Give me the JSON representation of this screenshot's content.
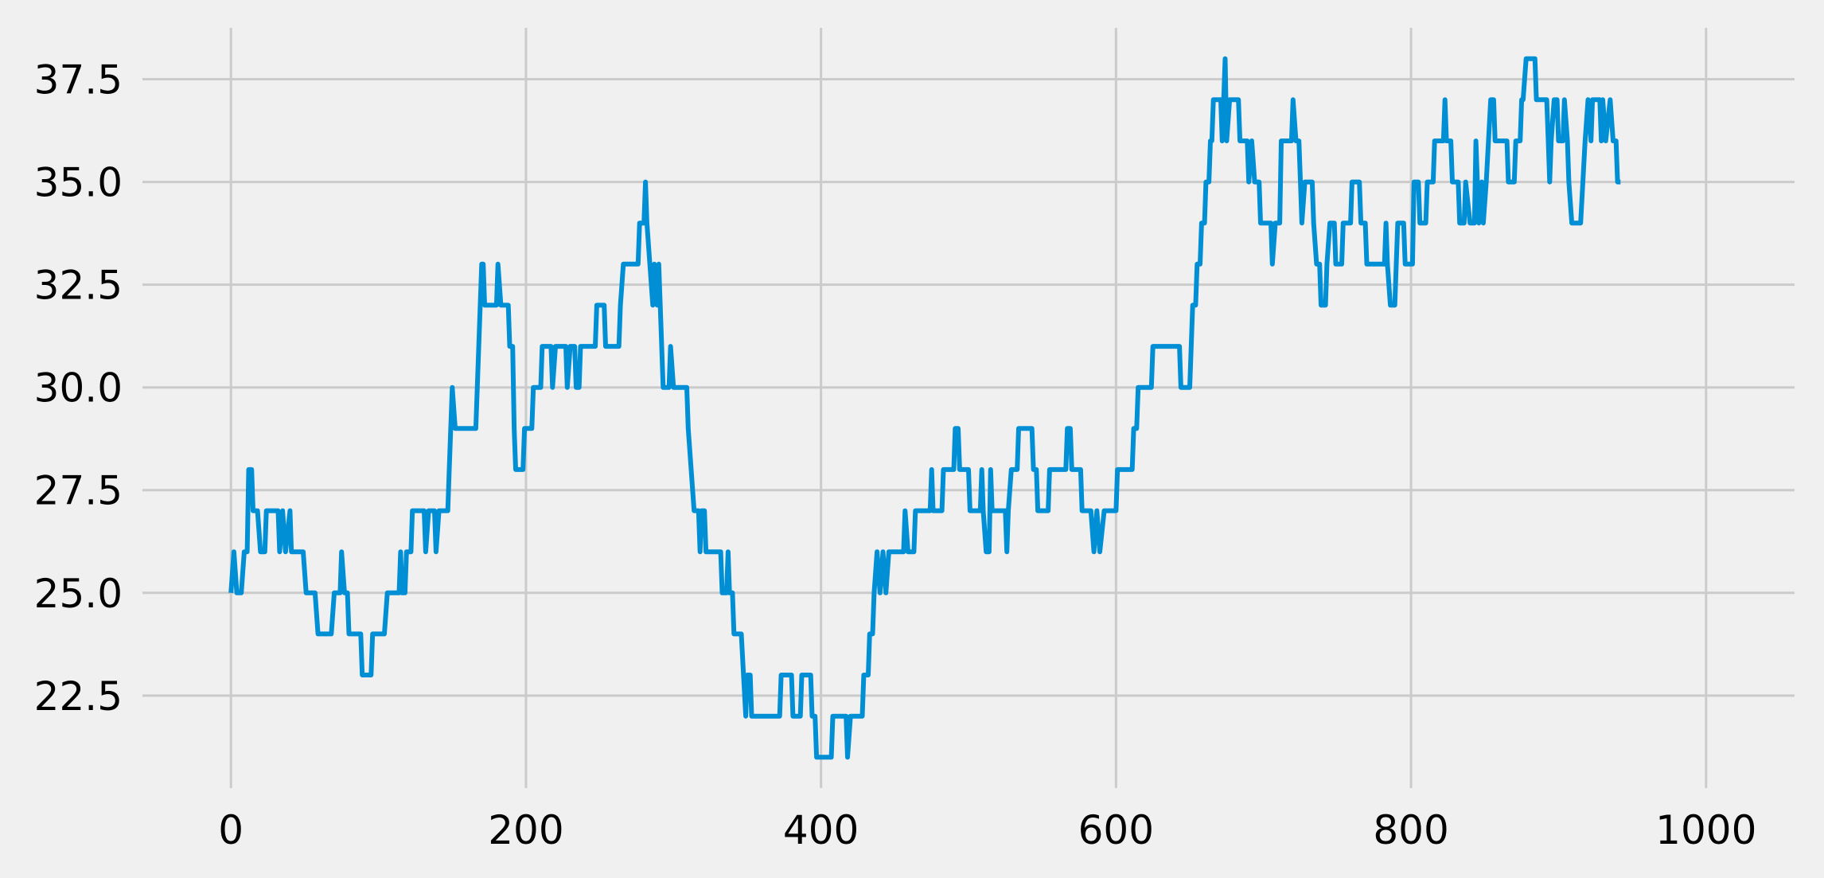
{
  "chart_data": {
    "type": "line",
    "title": "",
    "xlabel": "",
    "ylabel": "",
    "grid": true,
    "xlim": [
      -60,
      1060
    ],
    "ylim": [
      20.25,
      38.75
    ],
    "x_ticks": [
      0,
      200,
      400,
      600,
      800,
      1000
    ],
    "x_tick_labels": [
      "0",
      "200",
      "400",
      "600",
      "800",
      "1000"
    ],
    "y_ticks": [
      22.5,
      25.0,
      27.5,
      30.0,
      32.5,
      35.0,
      37.5
    ],
    "y_tick_labels": [
      "22.5",
      "25.0",
      "27.5",
      "30.0",
      "32.5",
      "35.0",
      "37.5"
    ],
    "colors": {
      "background": "#f0f0f0",
      "grid": "#cbcbcb",
      "line": "#008fd5"
    },
    "series": [
      {
        "color": "#008fd5",
        "steps": [
          [
            0,
            25
          ],
          [
            2,
            26
          ],
          [
            4,
            25
          ],
          [
            7,
            25
          ],
          [
            9,
            26
          ],
          [
            11,
            26
          ],
          [
            12,
            28
          ],
          [
            14,
            28
          ],
          [
            15,
            27
          ],
          [
            18,
            27
          ],
          [
            20,
            26
          ],
          [
            23,
            26
          ],
          [
            24,
            27
          ],
          [
            32,
            27
          ],
          [
            33,
            26
          ],
          [
            35,
            27
          ],
          [
            37,
            26
          ],
          [
            40,
            27
          ],
          [
            41,
            26
          ],
          [
            49,
            26
          ],
          [
            51,
            25
          ],
          [
            57,
            25
          ],
          [
            59,
            24
          ],
          [
            68,
            24
          ],
          [
            70,
            25
          ],
          [
            74,
            25
          ],
          [
            75,
            26
          ],
          [
            77,
            25
          ],
          [
            79,
            25
          ],
          [
            80,
            24
          ],
          [
            88,
            24
          ],
          [
            89,
            23
          ],
          [
            95,
            23
          ],
          [
            96,
            24
          ],
          [
            104,
            24
          ],
          [
            106,
            25
          ],
          [
            114,
            25
          ],
          [
            115,
            26
          ],
          [
            116,
            25
          ],
          [
            118,
            25
          ],
          [
            119,
            26
          ],
          [
            122,
            26
          ],
          [
            123,
            27
          ],
          [
            131,
            27
          ],
          [
            132,
            26
          ],
          [
            134,
            27
          ],
          [
            138,
            27
          ],
          [
            139,
            26
          ],
          [
            141,
            27
          ],
          [
            147,
            27
          ],
          [
            148,
            28
          ],
          [
            150,
            30
          ],
          [
            152,
            29
          ],
          [
            166,
            29
          ],
          [
            170,
            33
          ],
          [
            171,
            33
          ],
          [
            172,
            32
          ],
          [
            180,
            32
          ],
          [
            181,
            33
          ],
          [
            183,
            32
          ],
          [
            188,
            32
          ],
          [
            189,
            31
          ],
          [
            191,
            31
          ],
          [
            192,
            29
          ],
          [
            193,
            28
          ],
          [
            198,
            28
          ],
          [
            199,
            29
          ],
          [
            204,
            29
          ],
          [
            205,
            30
          ],
          [
            210,
            30
          ],
          [
            211,
            31
          ],
          [
            217,
            31
          ],
          [
            218,
            30
          ],
          [
            220,
            31
          ],
          [
            227,
            31
          ],
          [
            228,
            30
          ],
          [
            230,
            31
          ],
          [
            233,
            31
          ],
          [
            234,
            30
          ],
          [
            236,
            30
          ],
          [
            237,
            31
          ],
          [
            247,
            31
          ],
          [
            248,
            32
          ],
          [
            253,
            32
          ],
          [
            254,
            31
          ],
          [
            263,
            31
          ],
          [
            264,
            32
          ],
          [
            266,
            33
          ],
          [
            276,
            33
          ],
          [
            277,
            34
          ],
          [
            280,
            34
          ],
          [
            281,
            35
          ],
          [
            282,
            34
          ],
          [
            284,
            33
          ],
          [
            286,
            32
          ],
          [
            287,
            33
          ],
          [
            289,
            32
          ],
          [
            290,
            33
          ],
          [
            293,
            30
          ],
          [
            297,
            30
          ],
          [
            298,
            31
          ],
          [
            300,
            30
          ],
          [
            309,
            30
          ],
          [
            310,
            29
          ],
          [
            314,
            27
          ],
          [
            317,
            27
          ],
          [
            318,
            26
          ],
          [
            319,
            27
          ],
          [
            321,
            27
          ],
          [
            322,
            26
          ],
          [
            332,
            26
          ],
          [
            333,
            25
          ],
          [
            336,
            25
          ],
          [
            337,
            26
          ],
          [
            338,
            25
          ],
          [
            340,
            25
          ],
          [
            341,
            24
          ],
          [
            346,
            24
          ],
          [
            349,
            22
          ],
          [
            350,
            23
          ],
          [
            352,
            23
          ],
          [
            353,
            22
          ],
          [
            372,
            22
          ],
          [
            373,
            23
          ],
          [
            380,
            23
          ],
          [
            381,
            22
          ],
          [
            386,
            22
          ],
          [
            387,
            23
          ],
          [
            393,
            23
          ],
          [
            394,
            22
          ],
          [
            396,
            22
          ],
          [
            397,
            21
          ],
          [
            407,
            21
          ],
          [
            408,
            22
          ],
          [
            417,
            22
          ],
          [
            418,
            21
          ],
          [
            420,
            22
          ],
          [
            428,
            22
          ],
          [
            429,
            23
          ],
          [
            432,
            23
          ],
          [
            433,
            24
          ],
          [
            435,
            24
          ],
          [
            436,
            25
          ],
          [
            438,
            26
          ],
          [
            440,
            25
          ],
          [
            442,
            26
          ],
          [
            444,
            25
          ],
          [
            446,
            26
          ],
          [
            456,
            26
          ],
          [
            457,
            27
          ],
          [
            459,
            26
          ],
          [
            463,
            26
          ],
          [
            464,
            27
          ],
          [
            474,
            27
          ],
          [
            475,
            28
          ],
          [
            476,
            27
          ],
          [
            482,
            27
          ],
          [
            483,
            28
          ],
          [
            490,
            28
          ],
          [
            491,
            29
          ],
          [
            493,
            29
          ],
          [
            494,
            28
          ],
          [
            500,
            28
          ],
          [
            501,
            27
          ],
          [
            508,
            27
          ],
          [
            509,
            28
          ],
          [
            510,
            27
          ],
          [
            512,
            26
          ],
          [
            514,
            26
          ],
          [
            515,
            28
          ],
          [
            516,
            27
          ],
          [
            525,
            27
          ],
          [
            526,
            26
          ],
          [
            527,
            27
          ],
          [
            529,
            28
          ],
          [
            533,
            28
          ],
          [
            534,
            29
          ],
          [
            543,
            29
          ],
          [
            544,
            28
          ],
          [
            546,
            28
          ],
          [
            547,
            27
          ],
          [
            554,
            27
          ],
          [
            555,
            28
          ],
          [
            566,
            28
          ],
          [
            567,
            29
          ],
          [
            569,
            29
          ],
          [
            570,
            28
          ],
          [
            576,
            28
          ],
          [
            577,
            27
          ],
          [
            583,
            27
          ],
          [
            585,
            26
          ],
          [
            587,
            27
          ],
          [
            589,
            26
          ],
          [
            592,
            27
          ],
          [
            600,
            27
          ],
          [
            601,
            28
          ],
          [
            611,
            28
          ],
          [
            612,
            29
          ],
          [
            614,
            29
          ],
          [
            615,
            30
          ],
          [
            624,
            30
          ],
          [
            625,
            31
          ],
          [
            643,
            31
          ],
          [
            644,
            30
          ],
          [
            650,
            30
          ],
          [
            652,
            32
          ],
          [
            654,
            32
          ],
          [
            655,
            33
          ],
          [
            657,
            33
          ],
          [
            658,
            34
          ],
          [
            660,
            34
          ],
          [
            661,
            35
          ],
          [
            663,
            35
          ],
          [
            664,
            36
          ],
          [
            665,
            36
          ],
          [
            666,
            37
          ],
          [
            671,
            37
          ],
          [
            672,
            36
          ],
          [
            674,
            38
          ],
          [
            675,
            36
          ],
          [
            677,
            37
          ],
          [
            683,
            37
          ],
          [
            684,
            36
          ],
          [
            689,
            36
          ],
          [
            690,
            35
          ],
          [
            692,
            36
          ],
          [
            694,
            35
          ],
          [
            697,
            35
          ],
          [
            698,
            34
          ],
          [
            705,
            34
          ],
          [
            706,
            33
          ],
          [
            708,
            34
          ],
          [
            711,
            34
          ],
          [
            712,
            36
          ],
          [
            719,
            36
          ],
          [
            720,
            37
          ],
          [
            722,
            36
          ],
          [
            724,
            36
          ],
          [
            725,
            35
          ],
          [
            726,
            34
          ],
          [
            728,
            35
          ],
          [
            733,
            35
          ],
          [
            734,
            34
          ],
          [
            736,
            33
          ],
          [
            738,
            33
          ],
          [
            739,
            32
          ],
          [
            742,
            32
          ],
          [
            743,
            33
          ],
          [
            745,
            34
          ],
          [
            748,
            34
          ],
          [
            749,
            33
          ],
          [
            753,
            33
          ],
          [
            754,
            34
          ],
          [
            759,
            34
          ],
          [
            760,
            35
          ],
          [
            765,
            35
          ],
          [
            766,
            34
          ],
          [
            769,
            34
          ],
          [
            770,
            33
          ],
          [
            782,
            33
          ],
          [
            783,
            34
          ],
          [
            784,
            33
          ],
          [
            786,
            32
          ],
          [
            789,
            32
          ],
          [
            790,
            33
          ],
          [
            791,
            34
          ],
          [
            795,
            34
          ],
          [
            796,
            33
          ],
          [
            801,
            33
          ],
          [
            802,
            35
          ],
          [
            805,
            35
          ],
          [
            806,
            34
          ],
          [
            810,
            34
          ],
          [
            811,
            35
          ],
          [
            815,
            35
          ],
          [
            816,
            36
          ],
          [
            822,
            36
          ],
          [
            823,
            37
          ],
          [
            824,
            36
          ],
          [
            827,
            36
          ],
          [
            828,
            35
          ],
          [
            832,
            35
          ],
          [
            833,
            34
          ],
          [
            836,
            34
          ],
          [
            837,
            35
          ],
          [
            840,
            34
          ],
          [
            843,
            34
          ],
          [
            844,
            36
          ],
          [
            846,
            34
          ],
          [
            848,
            35
          ],
          [
            849,
            34
          ],
          [
            851,
            35
          ],
          [
            854,
            37
          ],
          [
            856,
            37
          ],
          [
            857,
            36
          ],
          [
            865,
            36
          ],
          [
            866,
            35
          ],
          [
            870,
            35
          ],
          [
            871,
            36
          ],
          [
            874,
            36
          ],
          [
            875,
            37
          ],
          [
            876,
            37
          ],
          [
            878,
            38
          ],
          [
            884,
            38
          ],
          [
            885,
            37
          ],
          [
            892,
            37
          ],
          [
            893,
            36
          ],
          [
            894,
            35
          ],
          [
            895,
            36
          ],
          [
            897,
            37
          ],
          [
            899,
            37
          ],
          [
            900,
            36
          ],
          [
            903,
            36
          ],
          [
            904,
            37
          ],
          [
            906,
            36
          ],
          [
            907,
            35
          ],
          [
            909,
            34
          ],
          [
            915,
            34
          ],
          [
            918,
            36
          ],
          [
            920,
            37
          ],
          [
            922,
            36
          ],
          [
            923,
            37
          ],
          [
            928,
            37
          ],
          [
            929,
            36
          ],
          [
            930,
            37
          ],
          [
            932,
            36
          ],
          [
            935,
            37
          ],
          [
            937,
            36
          ],
          [
            938,
            36
          ],
          [
            939,
            36
          ],
          [
            940,
            35
          ],
          [
            942,
            35
          ]
        ]
      }
    ]
  }
}
